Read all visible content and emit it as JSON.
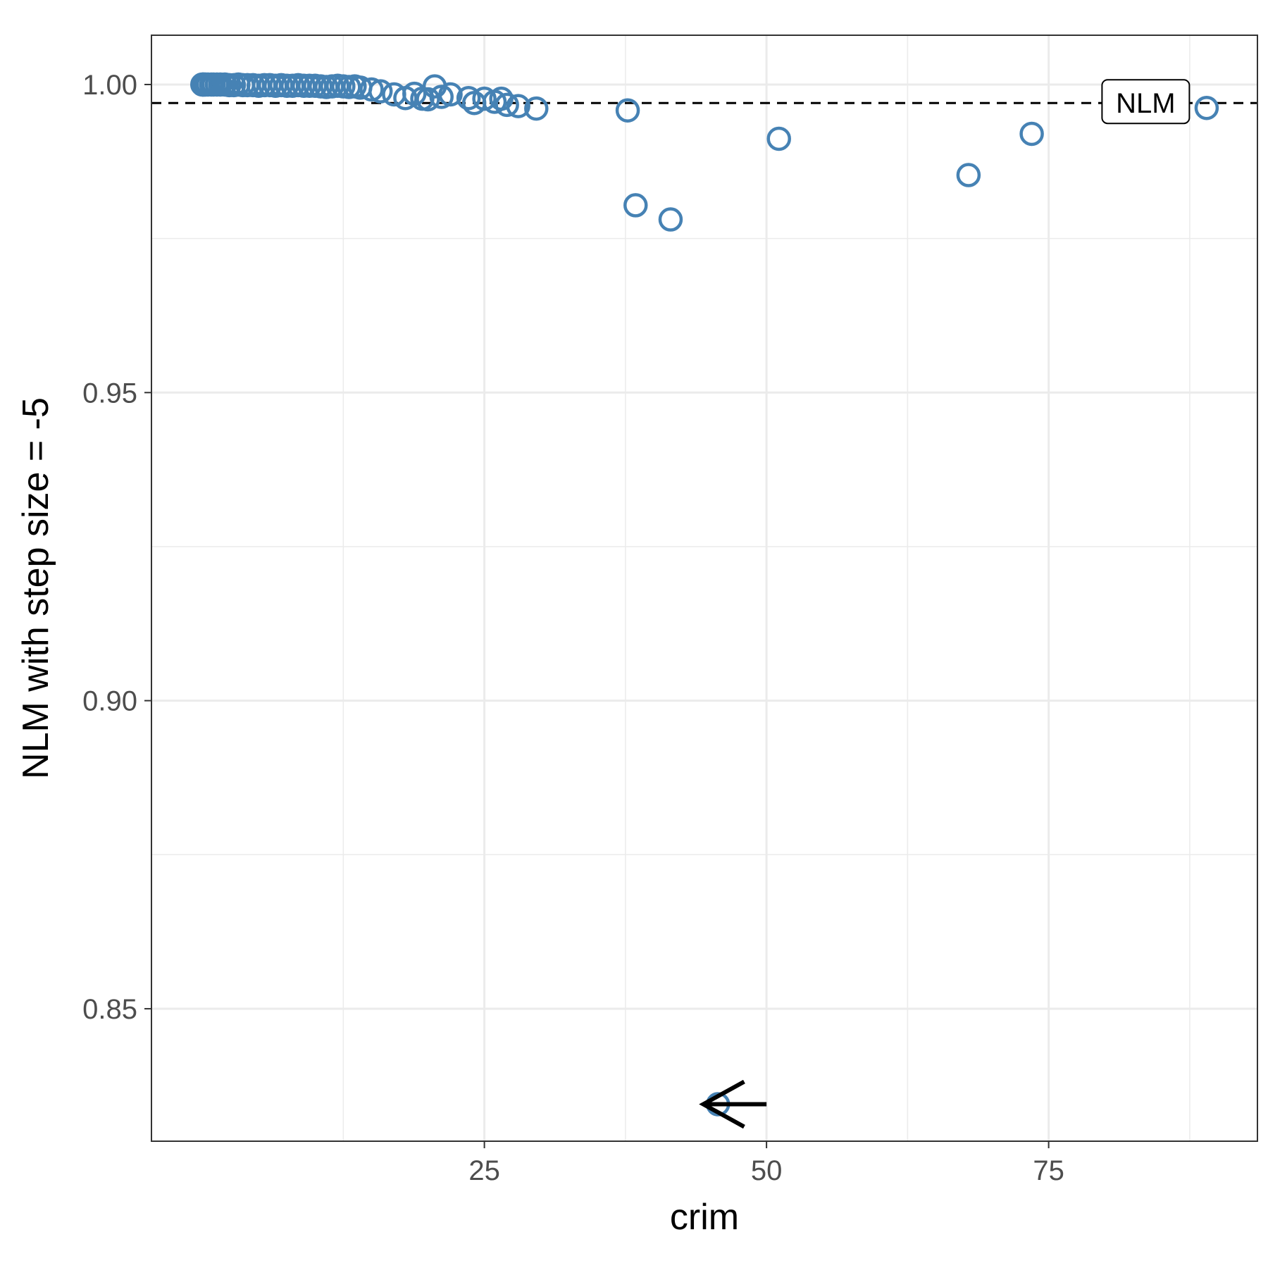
{
  "chart_data": {
    "type": "scatter",
    "title": "",
    "xlabel": "crim",
    "ylabel": "NLM with step size = -5",
    "xlim": [
      -4.5,
      93.5
    ],
    "ylim": [
      0.8285,
      1.008
    ],
    "x_ticks": [
      25,
      50,
      75
    ],
    "x_tick_labels": [
      "25",
      "50",
      "75"
    ],
    "x_minor_ticks": [
      12.5,
      37.5,
      62.5,
      87.5
    ],
    "y_ticks": [
      0.85,
      0.9,
      0.95,
      1.0
    ],
    "y_tick_labels": [
      "0.85",
      "0.90",
      "0.95",
      "1.00"
    ],
    "y_minor_ticks": [
      0.875,
      0.925,
      0.975
    ],
    "grid": true,
    "point_color": "#4682b4",
    "series": [
      {
        "points": [
          [
            0.01,
            1.0
          ],
          [
            0.05,
            1.0
          ],
          [
            0.1,
            1.0
          ],
          [
            0.2,
            1.0
          ],
          [
            0.3,
            1.0
          ],
          [
            0.5,
            1.0
          ],
          [
            0.8,
            1.0
          ],
          [
            1.0,
            1.0
          ],
          [
            1.3,
            1.0
          ],
          [
            1.6,
            1.0
          ],
          [
            2.0,
            1.0
          ],
          [
            2.4,
            0.9999
          ],
          [
            2.8,
            0.9999
          ],
          [
            3.2,
            1.0
          ],
          [
            3.6,
            0.9999
          ],
          [
            4.0,
            0.9999
          ],
          [
            4.5,
            0.9999
          ],
          [
            5.0,
            0.9998
          ],
          [
            5.5,
            0.9999
          ],
          [
            6.0,
            0.9999
          ],
          [
            6.5,
            0.9998
          ],
          [
            7.0,
            0.9999
          ],
          [
            7.5,
            0.9998
          ],
          [
            8.0,
            0.9998
          ],
          [
            8.5,
            0.9999
          ],
          [
            9.0,
            0.9998
          ],
          [
            9.5,
            0.9998
          ],
          [
            10.0,
            0.9998
          ],
          [
            10.5,
            0.9997
          ],
          [
            11.0,
            0.9996
          ],
          [
            11.5,
            0.9997
          ],
          [
            12.0,
            0.9998
          ],
          [
            12.5,
            0.9997
          ],
          [
            13.0,
            0.9996
          ],
          [
            13.5,
            0.9997
          ],
          [
            14.0,
            0.9995
          ],
          [
            15.0,
            0.9992
          ],
          [
            15.8,
            0.9989
          ],
          [
            17.0,
            0.9984
          ],
          [
            18.0,
            0.9978
          ],
          [
            18.8,
            0.9985
          ],
          [
            19.5,
            0.9977
          ],
          [
            20.0,
            0.9976
          ],
          [
            20.6,
            0.9997
          ],
          [
            21.2,
            0.998
          ],
          [
            22.0,
            0.9984
          ],
          [
            23.6,
            0.9978
          ],
          [
            24.1,
            0.997
          ],
          [
            25.0,
            0.9977
          ],
          [
            25.9,
            0.9972
          ],
          [
            26.5,
            0.9977
          ],
          [
            27.0,
            0.9967
          ],
          [
            28.0,
            0.9965
          ],
          [
            29.6,
            0.9961
          ],
          [
            37.7,
            0.9958
          ],
          [
            38.4,
            0.9804
          ],
          [
            41.5,
            0.9781
          ],
          [
            45.7,
            0.8345
          ],
          [
            51.1,
            0.9912
          ],
          [
            67.9,
            0.9853
          ],
          [
            73.5,
            0.992
          ],
          [
            89.0,
            0.9962
          ]
        ]
      }
    ],
    "reference_line": {
      "y": 0.997,
      "style": "dashed",
      "label": "NLM"
    },
    "arrow_annotation": {
      "x_from": 50.0,
      "x_to": 44.4,
      "y": 0.8345
    }
  }
}
